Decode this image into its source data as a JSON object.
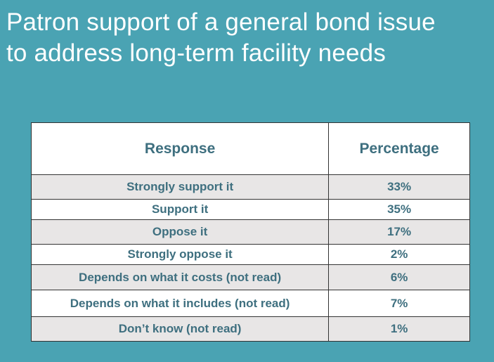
{
  "title": {
    "line1": "Patron support of a general bond issue",
    "line2": "to address long-term facility needs"
  },
  "table": {
    "headers": [
      "Response",
      "Percentage"
    ],
    "rows": [
      {
        "response": "Strongly support it",
        "percentage": "33%"
      },
      {
        "response": "Support it",
        "percentage": "35%"
      },
      {
        "response": "Oppose it",
        "percentage": "17%"
      },
      {
        "response": "Strongly oppose it",
        "percentage": "2%"
      },
      {
        "response": "Depends on what it costs (not read)",
        "percentage": "6%"
      },
      {
        "response": "Depends on what it includes (not read)",
        "percentage": "7%"
      },
      {
        "response": "Don’t know (not read)",
        "percentage": "1%"
      }
    ]
  },
  "colors": {
    "background": "#4aa3b3",
    "text": "#3e6f7f",
    "row_shade": "#e8e6e6"
  }
}
